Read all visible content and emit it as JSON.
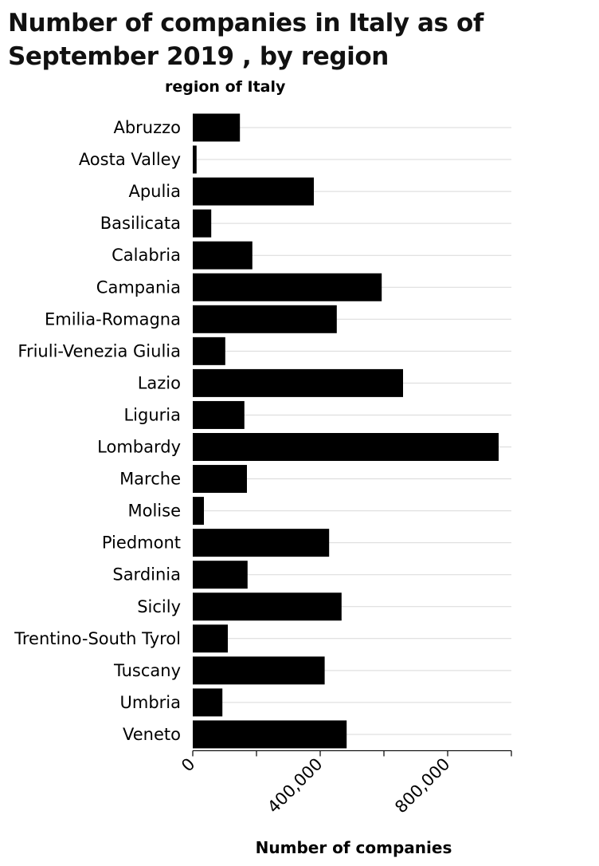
{
  "chart_data": {
    "type": "bar",
    "orientation": "horizontal",
    "title": "Number of companies in Italy as of September 2019 , by region",
    "ylabel": "region of Italy",
    "xlabel": "Number of companies",
    "categories": [
      "Abruzzo",
      "Aosta Valley",
      "Apulia",
      "Basilicata",
      "Calabria",
      "Campania",
      "Emilia-Romagna",
      "Friuli-Venezia Giulia",
      "Lazio",
      "Liguria",
      "Lombardy",
      "Marche",
      "Molise",
      "Piedmont",
      "Sardinia",
      "Sicily",
      "Trentino-South Tyrol",
      "Tuscany",
      "Umbria",
      "Veneto"
    ],
    "values": [
      148000,
      12000,
      380000,
      58000,
      187000,
      593000,
      452000,
      102000,
      660000,
      162000,
      960000,
      170000,
      35000,
      428000,
      172000,
      467000,
      110000,
      414000,
      93000,
      483000
    ],
    "xlim": [
      0,
      1000000
    ],
    "xticks": [
      0,
      200000,
      400000,
      600000,
      800000,
      1000000
    ],
    "xtick_labels": [
      "0",
      "",
      "400,000",
      "",
      "800,000",
      ""
    ],
    "grid": "vertical-none, horizontal category lines",
    "bar_color": "#000000",
    "grid_color": "#d9d9d9"
  }
}
